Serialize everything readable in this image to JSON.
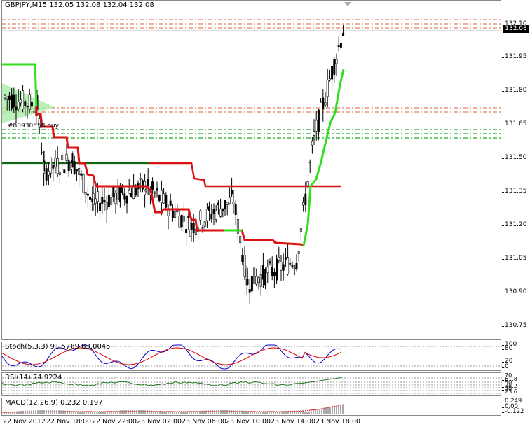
{
  "chart_header": {
    "symbol": "GBPJPY,M15",
    "ohlc": "132.05 132.08 132.04 132.08"
  },
  "trade_label": "#80930558 buy",
  "current_price": "132.08",
  "price_axis": [
    "132.10",
    "131.95",
    "131.80",
    "131.65",
    "131.50",
    "131.35",
    "131.20",
    "131.05",
    "130.90",
    "130.75"
  ],
  "stoch": {
    "label": "Stoch(5,3,3) 91.5789 83.0045",
    "axis": [
      "100",
      "80",
      "20",
      "0"
    ]
  },
  "rsi": {
    "label": "RSI(14) 74.9224",
    "axis": [
      "70",
      "61.8",
      "50",
      "38.2",
      "30",
      "23.6"
    ]
  },
  "macd": {
    "label": "MACD(12,26,9) 0.232 0.197",
    "axis": [
      "0.249",
      "0.00",
      "-0.122"
    ]
  },
  "time_axis": [
    "22 Nov 2012",
    "22 Nov 18:00",
    "22 Nov 22:00",
    "23 Nov 02:00",
    "23 Nov 06:00",
    "23 Nov 10:00",
    "23 Nov 14:00",
    "23 Nov 18:00"
  ],
  "colors": {
    "bull_line": "#33dd22",
    "bear_line": "#dd1111",
    "resistance_dash": "#e08060",
    "support_dash": "#22aa22",
    "stoch_main": "#0000cc",
    "stoch_signal": "#dd0000",
    "rsi": "#227722",
    "macd_hist": "#aaaaaa",
    "macd_signal": "#dd0000"
  }
}
